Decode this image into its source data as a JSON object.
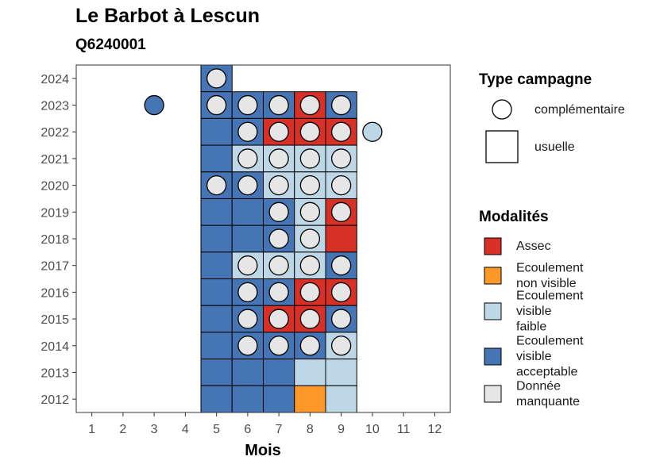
{
  "title": "Le Barbot à Lescun",
  "subtitle": "Q6240001",
  "chart_data": {
    "type": "heatmap",
    "title": "Le Barbot à Lescun",
    "subtitle": "Q6240001",
    "xlabel": "Mois",
    "ylabel": "",
    "x_ticks": [
      "1",
      "2",
      "3",
      "4",
      "5",
      "6",
      "7",
      "8",
      "9",
      "10",
      "11",
      "12"
    ],
    "y_ticks": [
      "2012",
      "2013",
      "2014",
      "2015",
      "2016",
      "2017",
      "2018",
      "2019",
      "2020",
      "2021",
      "2022",
      "2023",
      "2024"
    ],
    "xlim": [
      0.5,
      12.5
    ],
    "ylim": [
      2011.5,
      2024.5
    ],
    "grid": false,
    "legend_placement": "right",
    "colors": {
      "Assec": "#d73027",
      "Ecoulement non visible": "#fe9929",
      "Ecoulement visible faible": "#bdd7e7",
      "Ecoulement visible acceptable": "#4575b4",
      "Donnée manquante": "#e6e6e6"
    },
    "legend_shape": {
      "title": "Type campagne",
      "entries": [
        {
          "label": "complémentaire",
          "shape": "circle"
        },
        {
          "label": "usuelle",
          "shape": "square"
        }
      ]
    },
    "legend_fill": {
      "title": "Modalités",
      "entries": [
        {
          "key": "Assec",
          "lines": [
            "Assec"
          ]
        },
        {
          "key": "Ecoulement non visible",
          "lines": [
            "Ecoulement",
            "non visible"
          ]
        },
        {
          "key": "Ecoulement visible faible",
          "lines": [
            "Ecoulement",
            "visible",
            "faible"
          ]
        },
        {
          "key": "Ecoulement visible acceptable",
          "lines": [
            "Ecoulement",
            "visible",
            "acceptable"
          ]
        },
        {
          "key": "Donnée manquante",
          "lines": [
            "Donnée",
            "manquante"
          ]
        }
      ]
    },
    "usuelle": [
      {
        "year": 2024,
        "month": 5,
        "value": "Ecoulement visible acceptable"
      },
      {
        "year": 2023,
        "month": 5,
        "value": "Ecoulement visible acceptable"
      },
      {
        "year": 2023,
        "month": 6,
        "value": "Ecoulement visible acceptable"
      },
      {
        "year": 2023,
        "month": 7,
        "value": "Ecoulement visible acceptable"
      },
      {
        "year": 2023,
        "month": 8,
        "value": "Assec"
      },
      {
        "year": 2023,
        "month": 9,
        "value": "Ecoulement visible acceptable"
      },
      {
        "year": 2022,
        "month": 5,
        "value": "Ecoulement visible acceptable"
      },
      {
        "year": 2022,
        "month": 6,
        "value": "Ecoulement visible acceptable"
      },
      {
        "year": 2022,
        "month": 7,
        "value": "Assec"
      },
      {
        "year": 2022,
        "month": 8,
        "value": "Assec"
      },
      {
        "year": 2022,
        "month": 9,
        "value": "Assec"
      },
      {
        "year": 2021,
        "month": 5,
        "value": "Ecoulement visible acceptable"
      },
      {
        "year": 2021,
        "month": 6,
        "value": "Ecoulement visible faible"
      },
      {
        "year": 2021,
        "month": 7,
        "value": "Ecoulement visible faible"
      },
      {
        "year": 2021,
        "month": 8,
        "value": "Ecoulement visible faible"
      },
      {
        "year": 2021,
        "month": 9,
        "value": "Ecoulement visible faible"
      },
      {
        "year": 2020,
        "month": 5,
        "value": "Ecoulement visible acceptable"
      },
      {
        "year": 2020,
        "month": 6,
        "value": "Ecoulement visible acceptable"
      },
      {
        "year": 2020,
        "month": 7,
        "value": "Ecoulement visible faible"
      },
      {
        "year": 2020,
        "month": 8,
        "value": "Ecoulement visible faible"
      },
      {
        "year": 2020,
        "month": 9,
        "value": "Ecoulement visible faible"
      },
      {
        "year": 2019,
        "month": 5,
        "value": "Ecoulement visible acceptable"
      },
      {
        "year": 2019,
        "month": 6,
        "value": "Ecoulement visible acceptable"
      },
      {
        "year": 2019,
        "month": 7,
        "value": "Ecoulement visible acceptable"
      },
      {
        "year": 2019,
        "month": 8,
        "value": "Ecoulement visible faible"
      },
      {
        "year": 2019,
        "month": 9,
        "value": "Assec"
      },
      {
        "year": 2018,
        "month": 5,
        "value": "Ecoulement visible acceptable"
      },
      {
        "year": 2018,
        "month": 6,
        "value": "Ecoulement visible acceptable"
      },
      {
        "year": 2018,
        "month": 7,
        "value": "Ecoulement visible acceptable"
      },
      {
        "year": 2018,
        "month": 8,
        "value": "Ecoulement visible faible"
      },
      {
        "year": 2018,
        "month": 9,
        "value": "Assec"
      },
      {
        "year": 2017,
        "month": 5,
        "value": "Ecoulement visible acceptable"
      },
      {
        "year": 2017,
        "month": 6,
        "value": "Ecoulement visible faible"
      },
      {
        "year": 2017,
        "month": 7,
        "value": "Ecoulement visible faible"
      },
      {
        "year": 2017,
        "month": 8,
        "value": "Ecoulement visible faible"
      },
      {
        "year": 2017,
        "month": 9,
        "value": "Ecoulement visible acceptable"
      },
      {
        "year": 2016,
        "month": 5,
        "value": "Ecoulement visible acceptable"
      },
      {
        "year": 2016,
        "month": 6,
        "value": "Ecoulement visible acceptable"
      },
      {
        "year": 2016,
        "month": 7,
        "value": "Ecoulement visible acceptable"
      },
      {
        "year": 2016,
        "month": 8,
        "value": "Assec"
      },
      {
        "year": 2016,
        "month": 9,
        "value": "Assec"
      },
      {
        "year": 2015,
        "month": 5,
        "value": "Ecoulement visible acceptable"
      },
      {
        "year": 2015,
        "month": 6,
        "value": "Ecoulement visible acceptable"
      },
      {
        "year": 2015,
        "month": 7,
        "value": "Assec"
      },
      {
        "year": 2015,
        "month": 8,
        "value": "Assec"
      },
      {
        "year": 2015,
        "month": 9,
        "value": "Ecoulement visible acceptable"
      },
      {
        "year": 2014,
        "month": 5,
        "value": "Ecoulement visible acceptable"
      },
      {
        "year": 2014,
        "month": 6,
        "value": "Ecoulement visible acceptable"
      },
      {
        "year": 2014,
        "month": 7,
        "value": "Ecoulement visible acceptable"
      },
      {
        "year": 2014,
        "month": 8,
        "value": "Ecoulement visible acceptable"
      },
      {
        "year": 2014,
        "month": 9,
        "value": "Ecoulement visible faible"
      },
      {
        "year": 2013,
        "month": 5,
        "value": "Ecoulement visible acceptable"
      },
      {
        "year": 2013,
        "month": 6,
        "value": "Ecoulement visible acceptable"
      },
      {
        "year": 2013,
        "month": 7,
        "value": "Ecoulement visible acceptable"
      },
      {
        "year": 2013,
        "month": 8,
        "value": "Ecoulement visible faible"
      },
      {
        "year": 2013,
        "month": 9,
        "value": "Ecoulement visible faible"
      },
      {
        "year": 2012,
        "month": 5,
        "value": "Ecoulement visible acceptable"
      },
      {
        "year": 2012,
        "month": 6,
        "value": "Ecoulement visible acceptable"
      },
      {
        "year": 2012,
        "month": 7,
        "value": "Ecoulement visible acceptable"
      },
      {
        "year": 2012,
        "month": 8,
        "value": "Ecoulement non visible"
      },
      {
        "year": 2012,
        "month": 9,
        "value": "Ecoulement visible faible"
      }
    ],
    "complementaire": [
      {
        "year": 2024,
        "month": 5,
        "value": "Donnée manquante"
      },
      {
        "year": 2023,
        "month": 3,
        "value": "Ecoulement visible acceptable"
      },
      {
        "year": 2023,
        "month": 5,
        "value": "Donnée manquante"
      },
      {
        "year": 2023,
        "month": 6,
        "value": "Donnée manquante"
      },
      {
        "year": 2023,
        "month": 7,
        "value": "Donnée manquante"
      },
      {
        "year": 2023,
        "month": 8,
        "value": "Donnée manquante"
      },
      {
        "year": 2023,
        "month": 9,
        "value": "Donnée manquante"
      },
      {
        "year": 2022,
        "month": 6,
        "value": "Donnée manquante"
      },
      {
        "year": 2022,
        "month": 7,
        "value": "Donnée manquante"
      },
      {
        "year": 2022,
        "month": 8,
        "value": "Donnée manquante"
      },
      {
        "year": 2022,
        "month": 9,
        "value": "Donnée manquante"
      },
      {
        "year": 2022,
        "month": 10,
        "value": "Ecoulement visible faible"
      },
      {
        "year": 2021,
        "month": 6,
        "value": "Donnée manquante"
      },
      {
        "year": 2021,
        "month": 7,
        "value": "Donnée manquante"
      },
      {
        "year": 2021,
        "month": 8,
        "value": "Donnée manquante"
      },
      {
        "year": 2021,
        "month": 9,
        "value": "Donnée manquante"
      },
      {
        "year": 2020,
        "month": 5,
        "value": "Donnée manquante"
      },
      {
        "year": 2020,
        "month": 6,
        "value": "Donnée manquante"
      },
      {
        "year": 2020,
        "month": 7,
        "value": "Donnée manquante"
      },
      {
        "year": 2020,
        "month": 8,
        "value": "Donnée manquante"
      },
      {
        "year": 2020,
        "month": 9,
        "value": "Donnée manquante"
      },
      {
        "year": 2019,
        "month": 7,
        "value": "Donnée manquante"
      },
      {
        "year": 2019,
        "month": 8,
        "value": "Donnée manquante"
      },
      {
        "year": 2019,
        "month": 9,
        "value": "Donnée manquante"
      },
      {
        "year": 2018,
        "month": 7,
        "value": "Donnée manquante"
      },
      {
        "year": 2018,
        "month": 8,
        "value": "Donnée manquante"
      },
      {
        "year": 2017,
        "month": 6,
        "value": "Donnée manquante"
      },
      {
        "year": 2017,
        "month": 7,
        "value": "Donnée manquante"
      },
      {
        "year": 2017,
        "month": 8,
        "value": "Donnée manquante"
      },
      {
        "year": 2017,
        "month": 9,
        "value": "Donnée manquante"
      },
      {
        "year": 2016,
        "month": 6,
        "value": "Donnée manquante"
      },
      {
        "year": 2016,
        "month": 7,
        "value": "Donnée manquante"
      },
      {
        "year": 2016,
        "month": 8,
        "value": "Donnée manquante"
      },
      {
        "year": 2016,
        "month": 9,
        "value": "Donnée manquante"
      },
      {
        "year": 2015,
        "month": 6,
        "value": "Donnée manquante"
      },
      {
        "year": 2015,
        "month": 7,
        "value": "Donnée manquante"
      },
      {
        "year": 2015,
        "month": 8,
        "value": "Donnée manquante"
      },
      {
        "year": 2015,
        "month": 9,
        "value": "Donnée manquante"
      },
      {
        "year": 2014,
        "month": 6,
        "value": "Donnée manquante"
      },
      {
        "year": 2014,
        "month": 7,
        "value": "Donnée manquante"
      },
      {
        "year": 2014,
        "month": 8,
        "value": "Donnée manquante"
      },
      {
        "year": 2014,
        "month": 9,
        "value": "Donnée manquante"
      }
    ]
  }
}
